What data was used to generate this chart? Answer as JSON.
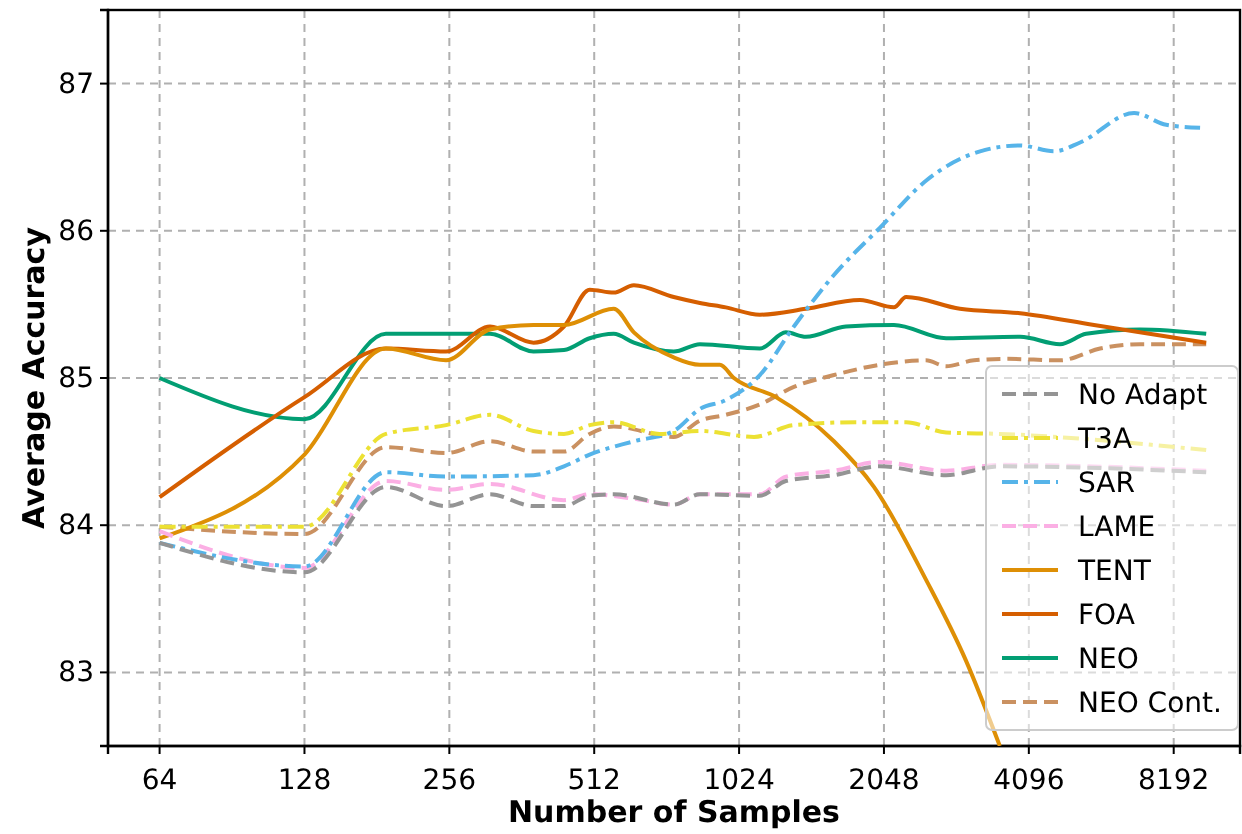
{
  "chart_data": {
    "type": "line",
    "xlabel": "Number of Samples",
    "ylabel": "Average Accuracy",
    "log": "x",
    "grid": true,
    "legend": "bottom right",
    "xlim": [
      50,
      11250
    ],
    "ylim": [
      82.5,
      87.5
    ],
    "xticks": [
      64,
      128,
      256,
      512,
      1024,
      2048,
      4096,
      8192
    ],
    "yticks": [
      83,
      84,
      85,
      86,
      87
    ],
    "series": [
      {
        "name": "No Adapt",
        "color": "#949494",
        "line_style": "dashed",
        "x": [
          64,
          128,
          189,
          252,
          311,
          383,
          443,
          501,
          562,
          749,
          849,
          1131,
          1281,
          1612,
          2008,
          2757,
          3565,
          9570
        ],
        "values": [
          83.88,
          83.68,
          84.26,
          84.13,
          84.21,
          84.13,
          84.13,
          84.2,
          84.21,
          84.14,
          84.21,
          84.2,
          84.3,
          84.34,
          84.4,
          84.34,
          84.4,
          84.36
        ]
      },
      {
        "name": "T3A",
        "color": "#ece133",
        "line_style": "dashdot",
        "x": [
          64,
          128,
          189,
          252,
          311,
          383,
          443,
          501,
          562,
          700,
          849,
          1100,
          1331,
          1826,
          2277,
          2757,
          3565,
          9570
        ],
        "values": [
          83.99,
          83.99,
          84.62,
          84.68,
          84.75,
          84.64,
          84.62,
          84.68,
          84.7,
          84.62,
          84.64,
          84.6,
          84.68,
          84.7,
          84.7,
          84.63,
          84.62,
          84.51
        ]
      },
      {
        "name": "SAR",
        "color": "#56b4e9",
        "line_style": "dashdot",
        "x": [
          64,
          128,
          189,
          252,
          383,
          443,
          501,
          619,
          749,
          849,
          961,
          1131,
          1331,
          1612,
          2008,
          2504,
          3243,
          3929,
          4621,
          5235,
          6778,
          7903,
          9294
        ],
        "values": [
          83.88,
          83.72,
          84.36,
          84.33,
          84.34,
          84.4,
          84.48,
          84.57,
          84.64,
          84.79,
          84.85,
          85.02,
          85.35,
          85.7,
          86.02,
          86.34,
          86.54,
          86.58,
          86.54,
          86.6,
          86.8,
          86.72,
          86.7
        ]
      },
      {
        "name": "LAME",
        "color": "#fbafe4",
        "line_style": "dashed",
        "x": [
          64,
          128,
          189,
          252,
          311,
          443,
          501,
          619,
          749,
          849,
          1131,
          1281,
          1612,
          2008,
          2757,
          3565,
          9570
        ],
        "values": [
          83.96,
          83.71,
          84.3,
          84.24,
          84.28,
          84.17,
          84.21,
          84.18,
          84.14,
          84.21,
          84.21,
          84.33,
          84.37,
          84.43,
          84.37,
          84.41,
          84.37
        ]
      },
      {
        "name": "TENT",
        "color": "#de8f05",
        "line_style": "solid",
        "x": [
          64,
          128,
          189,
          252,
          311,
          383,
          443,
          562,
          619,
          749,
          849,
          934,
          999,
          1221,
          1612,
          1952,
          2504,
          3032,
          3565
        ],
        "values": [
          83.91,
          84.48,
          85.2,
          85.12,
          85.33,
          85.36,
          85.36,
          85.47,
          85.31,
          85.14,
          85.09,
          85.09,
          85.0,
          84.87,
          84.57,
          84.26,
          83.63,
          83.08,
          82.5
        ]
      },
      {
        "name": "FOA",
        "color": "#d55e00",
        "line_style": "solid",
        "x": [
          64,
          128,
          189,
          252,
          311,
          383,
          443,
          501,
          562,
          619,
          749,
          849,
          961,
          1131,
          1410,
          1826,
          2148,
          2277,
          2945,
          3929,
          5596,
          9570
        ],
        "values": [
          84.19,
          84.87,
          85.2,
          85.18,
          85.35,
          85.24,
          85.35,
          85.6,
          85.58,
          85.63,
          85.55,
          85.51,
          85.48,
          85.43,
          85.47,
          85.53,
          85.48,
          85.55,
          85.47,
          85.44,
          85.36,
          85.24
        ]
      },
      {
        "name": "NEO",
        "color": "#029e73",
        "line_style": "solid",
        "x": [
          64,
          128,
          189,
          252,
          311,
          383,
          443,
          501,
          562,
          619,
          749,
          849,
          1131,
          1281,
          1410,
          1707,
          2148,
          2757,
          3929,
          4754,
          5387,
          6976,
          9570
        ],
        "values": [
          85.0,
          84.72,
          85.3,
          85.3,
          85.3,
          85.18,
          85.19,
          85.27,
          85.3,
          85.24,
          85.18,
          85.23,
          85.2,
          85.31,
          85.28,
          85.35,
          85.36,
          85.27,
          85.28,
          85.23,
          85.3,
          85.33,
          85.3
        ]
      },
      {
        "name": "NEO Cont.",
        "color": "#ca9161",
        "line_style": "dashed",
        "x": [
          64,
          128,
          189,
          252,
          311,
          383,
          443,
          501,
          562,
          749,
          849,
          961,
          1131,
          1331,
          1612,
          2008,
          2504,
          2757,
          3150,
          3674,
          4754,
          5760,
          6976,
          9570
        ],
        "values": [
          83.99,
          83.94,
          84.53,
          84.49,
          84.57,
          84.5,
          84.5,
          84.62,
          84.67,
          84.6,
          84.71,
          84.75,
          84.82,
          84.94,
          85.02,
          85.09,
          85.12,
          85.08,
          85.12,
          85.13,
          85.12,
          85.2,
          85.23,
          85.23
        ]
      }
    ]
  }
}
